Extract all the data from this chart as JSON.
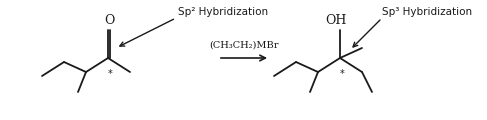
{
  "bg_color": "#ffffff",
  "text_color": "#1a1a1a",
  "figsize": [
    4.87,
    1.2
  ],
  "dpi": 100,
  "sp2_label": "Sp² Hybridization",
  "sp3_label": "Sp³ Hybridization",
  "O_label": "O",
  "OH_label": "OH",
  "reaction_label": "(CH₃CH₂)MBr",
  "star": "*"
}
